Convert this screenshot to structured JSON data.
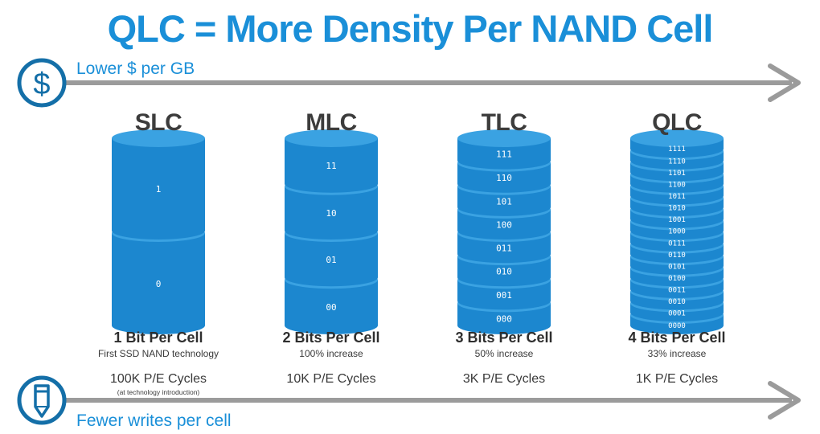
{
  "title": "QLC = More Density Per NAND Cell",
  "top_axis": {
    "label": "Lower $ per GB",
    "icon": "dollar-icon"
  },
  "bottom_axis": {
    "label": "Fewer writes per cell",
    "icon": "pencil-icon"
  },
  "colors": {
    "accent": "#1a8fd8",
    "arrow": "#9b9b9b",
    "text": "#3c3c3c"
  },
  "cells": [
    {
      "name": "SLC",
      "bits": "1 Bit Per Cell",
      "note": "First SSD NAND technology",
      "cycles": "100K P/E Cycles",
      "subnote": "(at technology introduction)",
      "states": [
        "1",
        "0"
      ]
    },
    {
      "name": "MLC",
      "bits": "2 Bits Per Cell",
      "note": "100% increase",
      "cycles": "10K P/E Cycles",
      "subnote": "",
      "states": [
        "11",
        "10",
        "01",
        "00"
      ]
    },
    {
      "name": "TLC",
      "bits": "3 Bits Per Cell",
      "note": "50% increase",
      "cycles": "3K P/E Cycles",
      "subnote": "",
      "states": [
        "111",
        "110",
        "101",
        "100",
        "011",
        "010",
        "001",
        "000"
      ]
    },
    {
      "name": "QLC",
      "bits": "4 Bits Per Cell",
      "note": "33% increase",
      "cycles": "1K P/E Cycles",
      "subnote": "",
      "states": [
        "1111",
        "1110",
        "1101",
        "1100",
        "1011",
        "1010",
        "1001",
        "1000",
        "0111",
        "0110",
        "0101",
        "0100",
        "0011",
        "0010",
        "0001",
        "0000"
      ]
    }
  ]
}
